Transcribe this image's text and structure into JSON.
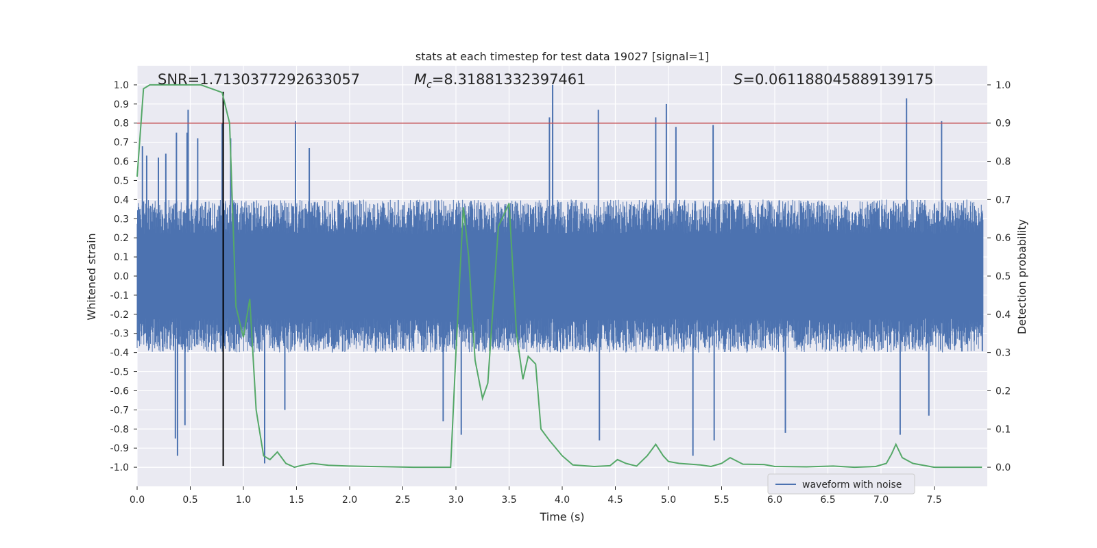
{
  "chart_data": {
    "type": "line",
    "title": "stats at each timestep for test data 19027 [signal=1]",
    "xlabel": "Time (s)",
    "ylabel": "Whitened strain",
    "y2label": "Detection probability",
    "xlim": [
      0.0,
      8.0
    ],
    "ylim": [
      -1.1,
      1.1
    ],
    "y2lim": [
      -0.05,
      1.05
    ],
    "x_ticks": [
      "0.0",
      "0.5",
      "1.0",
      "1.5",
      "2.0",
      "2.5",
      "3.0",
      "3.5",
      "4.0",
      "4.5",
      "5.0",
      "5.5",
      "6.0",
      "6.5",
      "7.0",
      "7.5"
    ],
    "y_ticks": [
      "1.0",
      "0.9",
      "0.8",
      "0.7",
      "0.6",
      "0.5",
      "0.4",
      "0.3",
      "0.2",
      "0.1",
      "0.0",
      "-0.1",
      "-0.2",
      "-0.3",
      "-0.4",
      "-0.5",
      "-0.6",
      "-0.7",
      "-0.8",
      "-0.9",
      "-1.0"
    ],
    "y2_ticks": [
      "1.0",
      "0.9",
      "0.8",
      "0.7",
      "0.6",
      "0.5",
      "0.4",
      "0.3",
      "0.2",
      "0.1",
      "0.0"
    ],
    "grid": true,
    "legend": {
      "position": "bottom-right",
      "entries": [
        "waveform with noise"
      ]
    },
    "stats": {
      "snr_label": "SNR=1.7130377292633057",
      "mc_symbol": "M",
      "mc_sub": "c",
      "mc_value": "=8.31881332397461",
      "s_symbol": "S",
      "s_value": "=0.061188045889139175"
    },
    "threshold": {
      "axis": "right",
      "value": 0.9
    },
    "marker_time": 0.81,
    "waveform": {
      "name": "waveform with noise",
      "color": "#4c72b0",
      "n_points": 2400,
      "core_amplitude": 0.4,
      "spikes": [
        {
          "x": 0.05,
          "y": 0.68
        },
        {
          "x": 0.09,
          "y": 0.63
        },
        {
          "x": 0.2,
          "y": 0.62
        },
        {
          "x": 0.27,
          "y": 0.64
        },
        {
          "x": 0.37,
          "y": 0.75
        },
        {
          "x": 0.47,
          "y": 0.75
        },
        {
          "x": 0.48,
          "y": 0.87
        },
        {
          "x": 0.57,
          "y": 0.72
        },
        {
          "x": 0.8,
          "y": 0.8
        },
        {
          "x": 0.88,
          "y": 0.72
        },
        {
          "x": 1.49,
          "y": 0.81
        },
        {
          "x": 1.62,
          "y": 0.67
        },
        {
          "x": 3.88,
          "y": 0.83
        },
        {
          "x": 3.91,
          "y": 1.0
        },
        {
          "x": 4.34,
          "y": 0.87
        },
        {
          "x": 4.88,
          "y": 0.83
        },
        {
          "x": 4.98,
          "y": 0.9
        },
        {
          "x": 5.07,
          "y": 0.78
        },
        {
          "x": 5.42,
          "y": 0.79
        },
        {
          "x": 7.24,
          "y": 0.93
        },
        {
          "x": 7.57,
          "y": 0.81
        },
        {
          "x": 0.36,
          "y": -0.85
        },
        {
          "x": 0.38,
          "y": -0.94
        },
        {
          "x": 0.45,
          "y": -0.78
        },
        {
          "x": 1.2,
          "y": -0.98
        },
        {
          "x": 1.39,
          "y": -0.7
        },
        {
          "x": 2.88,
          "y": -0.76
        },
        {
          "x": 3.05,
          "y": -0.83
        },
        {
          "x": 4.35,
          "y": -0.86
        },
        {
          "x": 5.23,
          "y": -0.94
        },
        {
          "x": 5.43,
          "y": -0.86
        },
        {
          "x": 6.1,
          "y": -0.82
        },
        {
          "x": 7.18,
          "y": -0.83
        },
        {
          "x": 7.45,
          "y": -0.73
        }
      ]
    },
    "probability": {
      "color": "#55a868",
      "x": [
        0.0,
        0.06,
        0.12,
        0.3,
        0.6,
        0.7,
        0.8,
        0.87,
        0.93,
        1.0,
        1.06,
        1.12,
        1.19,
        1.25,
        1.32,
        1.4,
        1.48,
        1.55,
        1.65,
        1.8,
        2.0,
        2.2,
        2.4,
        2.6,
        2.8,
        2.95,
        3.0,
        3.07,
        3.12,
        3.18,
        3.25,
        3.3,
        3.4,
        3.5,
        3.57,
        3.63,
        3.68,
        3.75,
        3.8,
        3.88,
        4.0,
        4.1,
        4.3,
        4.45,
        4.52,
        4.6,
        4.7,
        4.8,
        4.88,
        4.95,
        5.0,
        5.1,
        5.3,
        5.4,
        5.5,
        5.58,
        5.7,
        5.9,
        6.0,
        6.3,
        6.55,
        6.75,
        6.95,
        7.05,
        7.1,
        7.14,
        7.2,
        7.3,
        7.5,
        7.8,
        7.95
      ],
      "y": [
        0.76,
        0.99,
        1.0,
        1.0,
        1.0,
        0.99,
        0.98,
        0.9,
        0.42,
        0.34,
        0.44,
        0.15,
        0.03,
        0.02,
        0.04,
        0.01,
        0.0,
        0.005,
        0.01,
        0.005,
        0.003,
        0.002,
        0.001,
        0.0,
        0.0,
        0.0,
        0.3,
        0.68,
        0.55,
        0.28,
        0.18,
        0.22,
        0.63,
        0.69,
        0.35,
        0.23,
        0.29,
        0.27,
        0.1,
        0.07,
        0.03,
        0.006,
        0.002,
        0.004,
        0.02,
        0.01,
        0.003,
        0.03,
        0.06,
        0.03,
        0.015,
        0.01,
        0.006,
        0.002,
        0.01,
        0.025,
        0.008,
        0.007,
        0.002,
        0.001,
        0.003,
        0.0,
        0.002,
        0.01,
        0.035,
        0.06,
        0.025,
        0.01,
        0.0,
        0.0,
        0.0
      ]
    }
  }
}
